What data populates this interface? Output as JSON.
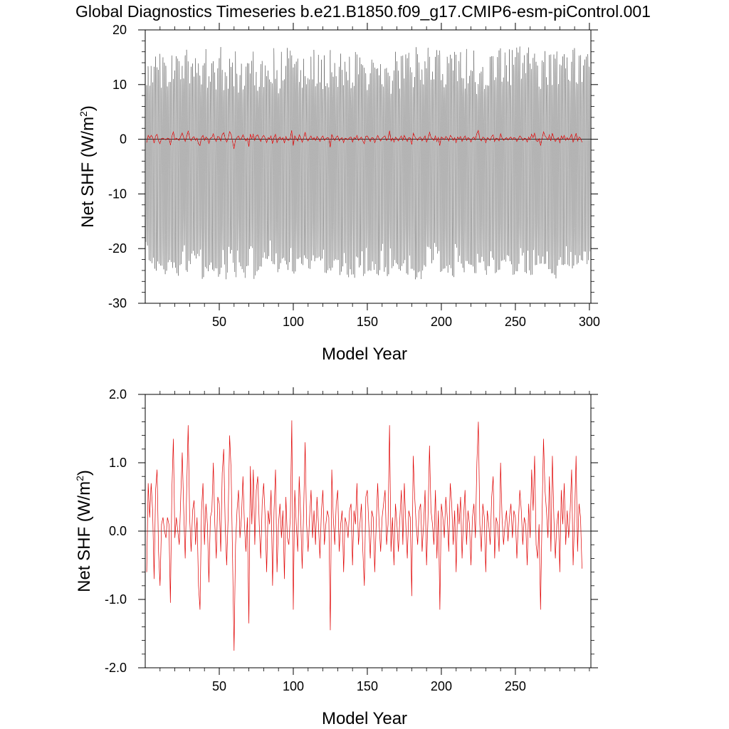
{
  "title": "Global Diagnostics Timeseries b.e21.B1850.f09_g17.CMIP6-esm-piControl.001",
  "chart_data": [
    {
      "type": "line",
      "xlabel": "Model Year",
      "ylabel": "Net SHF (W/m",
      "ylabel_sup": "2",
      "ylabel_close": ")",
      "xlim": [
        0,
        301
      ],
      "ylim": [
        -30,
        20
      ],
      "xticks": [
        50,
        100,
        150,
        200,
        250,
        300
      ],
      "xtick_labels": [
        "50",
        "100",
        "150",
        "200",
        "250",
        "300"
      ],
      "yticks": [
        -30,
        -20,
        -10,
        0,
        10,
        20
      ],
      "ytick_labels": [
        "-30",
        "-20",
        "-10",
        "0",
        "10",
        "20"
      ],
      "zero_line": true,
      "grid": false,
      "series": [
        {
          "kind": "monthly",
          "color": "#000000",
          "seasonal_max_range": [
            9,
            17
          ],
          "seasonal_min_range": [
            -26,
            -19
          ],
          "years": 300
        },
        {
          "kind": "annual",
          "color": "#e00000",
          "source": "annual_mean"
        }
      ]
    },
    {
      "type": "line",
      "xlabel": "Model Year",
      "ylabel": "Net SHF (W/m",
      "ylabel_sup": "2",
      "ylabel_close": ")",
      "xlim": [
        0,
        301
      ],
      "ylim": [
        -2.0,
        2.0
      ],
      "xticks": [
        50,
        100,
        150,
        200,
        250
      ],
      "xtick_labels": [
        "50",
        "100",
        "150",
        "200",
        "250"
      ],
      "yticks": [
        -2.0,
        -1.0,
        0.0,
        1.0,
        2.0
      ],
      "ytick_labels": [
        "-2.0",
        "-1.0",
        "0.0",
        "1.0",
        "2.0"
      ],
      "zero_line": true,
      "grid": false,
      "series": [
        {
          "kind": "annual",
          "color": "#e00000",
          "source": "annual_mean"
        }
      ]
    }
  ],
  "annual_mean": {
    "x_start": 1,
    "x_step": 1,
    "values": [
      -0.6,
      0.7,
      0.2,
      0.7,
      0.3,
      -0.7,
      0.6,
      0.9,
      -0.3,
      -0.8,
      0.1,
      0.2,
      0.0,
      -0.1,
      0.2,
      0.1,
      -1.05,
      0.6,
      1.35,
      -0.1,
      0.2,
      0.0,
      -0.2,
      0.5,
      1.15,
      0.3,
      -0.4,
      0.6,
      1.55,
      0.2,
      -0.3,
      0.3,
      0.45,
      -0.2,
      0.2,
      -0.8,
      -1.15,
      0.3,
      0.7,
      -0.2,
      0.4,
      0.1,
      -0.75,
      0.2,
      0.3,
      1.0,
      0.1,
      -0.4,
      0.5,
      0.4,
      -0.3,
      0.85,
      1.2,
      0.1,
      -0.5,
      0.2,
      1.4,
      0.9,
      -0.4,
      -1.75,
      -0.2,
      0.3,
      0.6,
      -0.1,
      0.2,
      0.8,
      0.1,
      -0.3,
      0.2,
      -1.35,
      0.95,
      0.1,
      0.9,
      -0.2,
      0.6,
      0.8,
      0.1,
      -0.4,
      0.4,
      0.7,
      0.2,
      -0.6,
      0.3,
      0.1,
      0.6,
      -0.8,
      0.3,
      0.9,
      -0.6,
      0.1,
      0.4,
      -0.1,
      0.3,
      -0.7,
      0.5,
      -0.1,
      -0.2,
      0.2,
      1.62,
      -1.15,
      0.6,
      0.1,
      -0.3,
      0.8,
      0.2,
      -0.55,
      0.3,
      1.3,
      0.1,
      -0.3,
      0.2,
      0.6,
      -0.1,
      0.3,
      -0.2,
      0.5,
      0.1,
      -0.4,
      0.3,
      0.6,
      -0.2,
      0.1,
      0.3,
      0.2,
      -1.45,
      0.9,
      0.2,
      -0.2,
      0.4,
      0.6,
      -0.3,
      0.1,
      0.3,
      -0.6,
      0.2,
      0.1,
      -0.1,
      0.3,
      0.4,
      -0.5,
      0.3,
      0.1,
      0.7,
      -0.2,
      0.1,
      0.4,
      -0.3,
      -0.8,
      0.5,
      0.6,
      0.1,
      -0.4,
      0.3,
      0.2,
      -0.6,
      0.1,
      0.7,
      0.1,
      -0.3,
      0.2,
      0.4,
      0.6,
      -0.2,
      0.1,
      1.55,
      -0.3,
      0.2,
      -0.5,
      0.4,
      0.1,
      -0.3,
      0.2,
      0.6,
      -0.2,
      0.7,
      0.1,
      -0.4,
      0.3,
      0.2,
      -0.95,
      1.1,
      0.5,
      0.1,
      -0.2,
      0.3,
      0.4,
      -0.3,
      0.1,
      0.6,
      -0.5,
      0.2,
      1.25,
      0.3,
      0.1,
      -0.2,
      0.6,
      -0.4,
      0.3,
      -1.15,
      0.4,
      0.2,
      -0.1,
      0.5,
      0.2,
      -0.3,
      0.7,
      0.4,
      -0.2,
      0.3,
      -0.6,
      0.4,
      0.1,
      0.5,
      -0.4,
      0.2,
      0.6,
      -0.2,
      0.3,
      0.1,
      -0.5,
      0.2,
      0.4,
      -0.1,
      1.0,
      1.6,
      0.1,
      -0.3,
      0.4,
      0.2,
      -0.6,
      0.3,
      0.1,
      -0.2,
      0.5,
      0.8,
      -0.4,
      0.2,
      0.1,
      -0.3,
      1.0,
      0.2,
      -0.2,
      0.1,
      0.3,
      -0.15,
      0.2,
      0.4,
      -0.1,
      0.3,
      0.2,
      -0.4,
      0.1,
      0.6,
      0.3,
      -0.2,
      0.2,
      0.1,
      -0.5,
      0.4,
      -0.1,
      0.9,
      0.3,
      1.1,
      -0.2,
      -0.4,
      0.1,
      -1.15,
      0.2,
      1.35,
      0.6,
      0.3,
      -0.1,
      0.8,
      -0.3,
      1.1,
      0.2,
      -0.4,
      0.1,
      0.3,
      -0.6,
      0.6,
      0.1,
      0.7,
      -0.2,
      0.3,
      -0.1,
      0.3,
      0.9,
      -0.5,
      0.2,
      1.1,
      -0.3,
      0.4,
      0.2,
      -0.55
    ]
  }
}
